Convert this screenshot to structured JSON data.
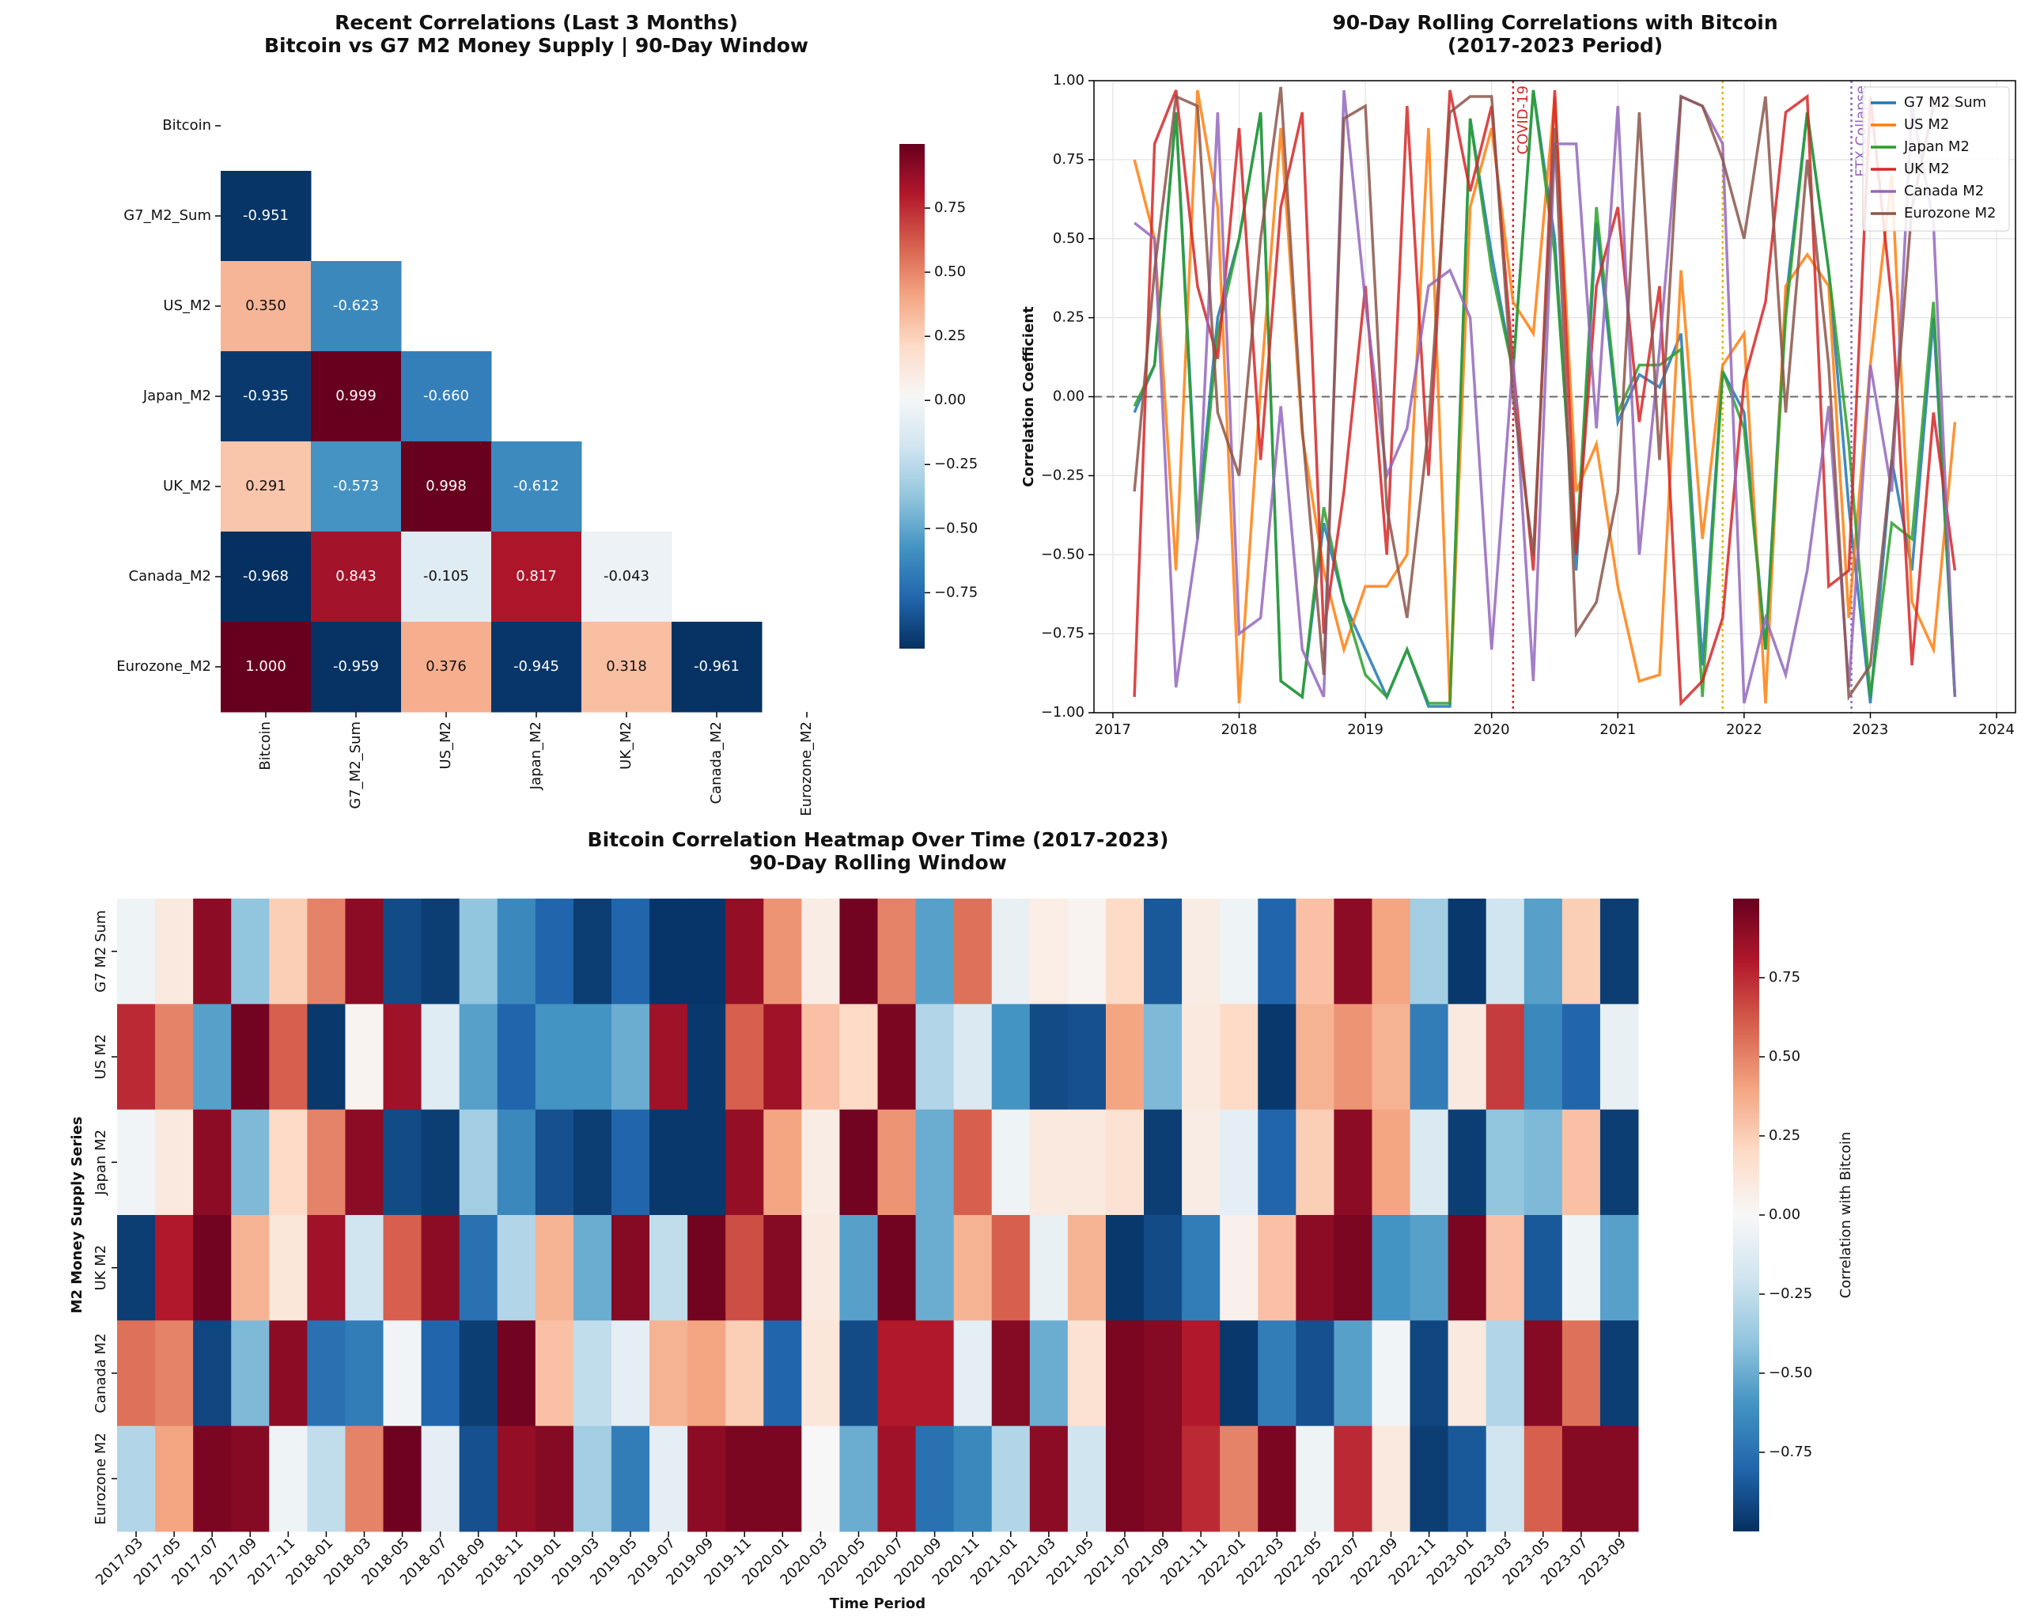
{
  "chart_data": [
    {
      "type": "heatmap",
      "title": "Recent Correlations (Last 3 Months)",
      "subtitle": "Bitcoin vs G7 M2 Money Supply | 90-Day Window",
      "rows": [
        "Bitcoin",
        "G7_M2_Sum",
        "US_M2",
        "Japan_M2",
        "UK_M2",
        "Canada_M2",
        "Eurozone_M2"
      ],
      "columns": [
        "Bitcoin",
        "G7_M2_Sum",
        "US_M2",
        "Japan_M2",
        "UK_M2",
        "Canada_M2",
        "Eurozone_M2"
      ],
      "values": [
        [
          null,
          null,
          null,
          null,
          null,
          null,
          null
        ],
        [
          -0.951,
          null,
          null,
          null,
          null,
          null,
          null
        ],
        [
          0.35,
          -0.623,
          null,
          null,
          null,
          null,
          null
        ],
        [
          -0.935,
          0.999,
          -0.66,
          null,
          null,
          null,
          null
        ],
        [
          0.291,
          -0.573,
          0.998,
          -0.612,
          null,
          null,
          null
        ],
        [
          -0.968,
          0.843,
          -0.105,
          0.817,
          -0.043,
          null,
          null
        ],
        [
          1.0,
          -0.959,
          0.376,
          -0.945,
          0.318,
          -0.961,
          null
        ]
      ],
      "value_labels": [
        [
          null,
          null,
          null,
          null,
          null,
          null,
          null
        ],
        [
          "-0.951",
          null,
          null,
          null,
          null,
          null,
          null
        ],
        [
          "0.350",
          "-0.623",
          null,
          null,
          null,
          null,
          null
        ],
        [
          "-0.935",
          "0.999",
          "-0.660",
          null,
          null,
          null,
          null
        ],
        [
          "0.291",
          "-0.573",
          "0.998",
          "-0.612",
          null,
          null,
          null
        ],
        [
          "-0.968",
          "0.843",
          "-0.105",
          "0.817",
          "-0.043",
          null,
          null
        ],
        [
          "1.000",
          "-0.959",
          "0.376",
          "-0.945",
          "0.318",
          "-0.961",
          null
        ]
      ],
      "clim": [
        -0.968,
        1.0
      ],
      "cticks": [
        {
          "value": -0.75,
          "label": "−0.75"
        },
        {
          "value": -0.5,
          "label": "−0.50"
        },
        {
          "value": -0.25,
          "label": "−0.25"
        },
        {
          "value": 0,
          "label": "0.00"
        },
        {
          "value": 0.25,
          "label": "0.25"
        },
        {
          "value": 0.5,
          "label": "0.50"
        },
        {
          "value": 0.75,
          "label": "0.75"
        }
      ],
      "colormap": [
        "#053061",
        "#2166ac",
        "#4393c3",
        "#92c5de",
        "#d1e5f0",
        "#f7f7f7",
        "#fddbc7",
        "#f4a582",
        "#d6604d",
        "#b2182b",
        "#67001f"
      ]
    },
    {
      "type": "line",
      "title": "90-Day Rolling Correlations with Bitcoin",
      "subtitle": "(2017-2023 Period)",
      "ylabel": "Correlation Coefficient",
      "x": [
        2017.17,
        2017.33,
        2017.5,
        2017.67,
        2017.83,
        2018.0,
        2018.17,
        2018.33,
        2018.5,
        2018.67,
        2018.83,
        2019.0,
        2019.17,
        2019.33,
        2019.5,
        2019.67,
        2019.83,
        2020.0,
        2020.17,
        2020.33,
        2020.5,
        2020.67,
        2020.83,
        2021.0,
        2021.17,
        2021.33,
        2021.5,
        2021.67,
        2021.83,
        2022.0,
        2022.17,
        2022.33,
        2022.5,
        2022.67,
        2022.83,
        2023.0,
        2023.17,
        2023.33,
        2023.5,
        2023.67
      ],
      "series": [
        {
          "name": "G7 M2 Sum",
          "color": "#1f77b4",
          "values": [
            -0.05,
            0.1,
            0.9,
            -0.4,
            0.25,
            0.5,
            0.9,
            -0.9,
            -0.95,
            -0.4,
            -0.65,
            -0.8,
            -0.95,
            -0.8,
            -0.98,
            -0.98,
            0.88,
            0.45,
            0.08,
            0.97,
            0.5,
            -0.55,
            0.55,
            -0.08,
            0.07,
            0.03,
            0.2,
            -0.85,
            0.08,
            -0.05,
            -0.8,
            0.3,
            0.9,
            0.4,
            -0.35,
            -0.97,
            -0.2,
            -0.55,
            0.25,
            -0.95
          ]
        },
        {
          "name": "US M2",
          "color": "#ff7f0e",
          "values": [
            0.75,
            0.5,
            -0.55,
            0.97,
            0.6,
            -0.97,
            0.03,
            0.85,
            -0.12,
            -0.55,
            -0.8,
            -0.6,
            -0.6,
            -0.5,
            0.85,
            -0.97,
            0.6,
            0.85,
            0.3,
            0.2,
            0.95,
            -0.3,
            -0.15,
            -0.6,
            -0.9,
            -0.88,
            0.4,
            -0.45,
            0.1,
            0.2,
            -0.97,
            0.35,
            0.45,
            0.35,
            -0.7,
            0.1,
            0.7,
            -0.65,
            -0.8,
            -0.08
          ]
        },
        {
          "name": "Japan M2",
          "color": "#2ca02c",
          "values": [
            -0.03,
            0.1,
            0.9,
            -0.45,
            0.2,
            0.5,
            0.9,
            -0.9,
            -0.95,
            -0.35,
            -0.65,
            -0.88,
            -0.95,
            -0.8,
            -0.97,
            -0.97,
            0.88,
            0.4,
            0.08,
            0.97,
            0.45,
            -0.5,
            0.6,
            -0.05,
            0.1,
            0.1,
            0.15,
            -0.95,
            0.08,
            -0.1,
            -0.8,
            0.25,
            0.9,
            0.4,
            -0.15,
            -0.95,
            -0.4,
            -0.45,
            0.3,
            -0.95
          ]
        },
        {
          "name": "UK M2",
          "color": "#d62728",
          "values": [
            -0.95,
            0.8,
            0.97,
            0.35,
            0.12,
            0.85,
            -0.2,
            0.6,
            0.9,
            -0.75,
            -0.3,
            0.35,
            -0.5,
            0.92,
            -0.25,
            0.97,
            0.65,
            0.92,
            0.1,
            -0.55,
            0.97,
            -0.5,
            0.35,
            0.6,
            -0.08,
            0.35,
            -0.97,
            -0.9,
            -0.7,
            0.05,
            0.3,
            0.9,
            0.95,
            -0.6,
            -0.55,
            0.95,
            0.3,
            -0.85,
            -0.05,
            -0.55
          ]
        },
        {
          "name": "Canada M2",
          "color": "#9467bd",
          "values": [
            0.55,
            0.5,
            -0.92,
            -0.45,
            0.9,
            -0.75,
            -0.7,
            -0.03,
            -0.8,
            -0.95,
            0.97,
            0.3,
            -0.25,
            -0.1,
            0.35,
            0.4,
            0.25,
            -0.8,
            0.12,
            -0.9,
            0.8,
            0.8,
            -0.1,
            0.92,
            -0.5,
            0.15,
            0.95,
            0.92,
            0.8,
            -0.97,
            -0.7,
            -0.88,
            -0.55,
            -0.03,
            -0.92,
            0.1,
            -0.3,
            0.92,
            0.55,
            -0.95
          ]
        },
        {
          "name": "Eurozone M2",
          "color": "#8c564b",
          "values": [
            -0.3,
            0.4,
            0.95,
            0.92,
            -0.05,
            -0.25,
            0.5,
            0.98,
            -0.1,
            -0.88,
            0.88,
            0.92,
            -0.35,
            -0.7,
            -0.1,
            0.9,
            0.95,
            0.95,
            0.0,
            -0.5,
            0.85,
            -0.75,
            -0.65,
            -0.3,
            0.9,
            -0.2,
            0.95,
            0.92,
            0.75,
            0.5,
            0.95,
            -0.05,
            0.75,
            0.1,
            -0.95,
            -0.85,
            -0.2,
            0.6,
            0.92,
            0.92
          ]
        }
      ],
      "xlim": [
        2016.85,
        2024.15
      ],
      "xticks": [
        2017,
        2018,
        2019,
        2020,
        2021,
        2022,
        2023,
        2024
      ],
      "ylim": [
        -1,
        1
      ],
      "yticks": [
        {
          "value": -1,
          "label": "−1.00"
        },
        {
          "value": -0.75,
          "label": "−0.75"
        },
        {
          "value": -0.5,
          "label": "−0.50"
        },
        {
          "value": -0.25,
          "label": "−0.25"
        },
        {
          "value": 0,
          "label": "0.00"
        },
        {
          "value": 0.25,
          "label": "0.25"
        },
        {
          "value": 0.5,
          "label": "0.50"
        },
        {
          "value": 0.75,
          "label": "0.75"
        },
        {
          "value": 1,
          "label": "1.00"
        }
      ],
      "hline": 0,
      "grid": true,
      "legend": "upper right",
      "events": [
        {
          "x": 2020.17,
          "label": "COVID-19",
          "color": "#d62728"
        },
        {
          "x": 2021.83,
          "color": "#e6b800"
        },
        {
          "x": 2022.85,
          "label": "FTX Collapse",
          "color": "#9467bd"
        }
      ]
    },
    {
      "type": "heatmap",
      "title": "Bitcoin Correlation Heatmap Over Time (2017-2023)",
      "subtitle": "90-Day Rolling Window",
      "xlabel": "Time Period",
      "ylabel": "M2 Money Supply Series",
      "colorbar_label": "Correlation with Bitcoin",
      "rows": [
        "G7 M2 Sum",
        "US M2",
        "Japan M2",
        "UK M2",
        "Canada M2",
        "Eurozone M2"
      ],
      "categories": [
        "2017-03",
        "2017-05",
        "2017-07",
        "2017-09",
        "2017-11",
        "2018-01",
        "2018-03",
        "2018-05",
        "2018-07",
        "2018-09",
        "2018-11",
        "2019-01",
        "2019-03",
        "2019-05",
        "2019-07",
        "2019-09",
        "2019-11",
        "2020-01",
        "2020-03",
        "2020-05",
        "2020-07",
        "2020-09",
        "2020-11",
        "2021-01",
        "2021-03",
        "2021-05",
        "2021-07",
        "2021-09",
        "2021-11",
        "2022-01",
        "2022-03",
        "2022-05",
        "2022-07",
        "2022-09",
        "2022-11",
        "2023-01",
        "2023-03",
        "2023-05",
        "2023-07",
        "2023-09"
      ],
      "values": [
        [
          -0.05,
          0.1,
          0.9,
          -0.4,
          0.25,
          0.5,
          0.9,
          -0.9,
          -0.95,
          -0.4,
          -0.65,
          -0.8,
          -0.95,
          -0.8,
          -0.98,
          -0.98,
          0.88,
          0.45,
          0.08,
          0.97,
          0.5,
          -0.55,
          0.55,
          -0.08,
          0.07,
          0.03,
          0.2,
          -0.85,
          0.08,
          -0.05,
          -0.8,
          0.3,
          0.9,
          0.4,
          -0.35,
          -0.97,
          -0.2,
          -0.55,
          0.25,
          -0.95
        ],
        [
          0.75,
          0.5,
          -0.55,
          0.97,
          0.6,
          -0.97,
          0.03,
          0.85,
          -0.12,
          -0.55,
          -0.8,
          -0.6,
          -0.6,
          -0.5,
          0.85,
          -0.97,
          0.6,
          0.85,
          0.3,
          0.2,
          0.95,
          -0.3,
          -0.15,
          -0.6,
          -0.9,
          -0.88,
          0.4,
          -0.45,
          0.1,
          0.2,
          -0.97,
          0.35,
          0.45,
          0.35,
          -0.7,
          0.1,
          0.7,
          -0.65,
          -0.8,
          -0.08
        ],
        [
          -0.03,
          0.1,
          0.9,
          -0.45,
          0.2,
          0.5,
          0.9,
          -0.9,
          -0.95,
          -0.35,
          -0.65,
          -0.88,
          -0.95,
          -0.8,
          -0.97,
          -0.97,
          0.88,
          0.4,
          0.08,
          0.97,
          0.45,
          -0.5,
          0.6,
          -0.05,
          0.1,
          0.1,
          0.15,
          -0.95,
          0.08,
          -0.1,
          -0.8,
          0.25,
          0.9,
          0.4,
          -0.15,
          -0.95,
          -0.4,
          -0.45,
          0.3,
          -0.95
        ],
        [
          -0.95,
          0.8,
          0.97,
          0.35,
          0.12,
          0.85,
          -0.2,
          0.6,
          0.9,
          -0.75,
          -0.3,
          0.35,
          -0.5,
          0.92,
          -0.25,
          0.97,
          0.65,
          0.92,
          0.1,
          -0.55,
          0.97,
          -0.5,
          0.35,
          0.6,
          -0.08,
          0.35,
          -0.97,
          -0.9,
          -0.7,
          0.05,
          0.3,
          0.9,
          0.95,
          -0.6,
          -0.55,
          0.95,
          0.3,
          -0.85,
          -0.05,
          -0.55
        ],
        [
          0.55,
          0.5,
          -0.92,
          -0.45,
          0.9,
          -0.75,
          -0.7,
          -0.03,
          -0.8,
          -0.95,
          0.97,
          0.3,
          -0.25,
          -0.1,
          0.35,
          0.4,
          0.25,
          -0.8,
          0.12,
          -0.9,
          0.8,
          0.8,
          -0.1,
          0.92,
          -0.5,
          0.15,
          0.95,
          0.92,
          0.8,
          -0.97,
          -0.7,
          -0.88,
          -0.55,
          -0.03,
          -0.92,
          0.1,
          -0.3,
          0.92,
          0.55,
          -0.95
        ],
        [
          -0.3,
          0.4,
          0.95,
          0.92,
          -0.05,
          -0.25,
          0.5,
          0.98,
          -0.1,
          -0.88,
          0.88,
          0.92,
          -0.35,
          -0.7,
          -0.1,
          0.9,
          0.95,
          0.95,
          0.0,
          -0.5,
          0.85,
          -0.75,
          -0.65,
          -0.3,
          0.9,
          -0.2,
          0.95,
          0.92,
          0.75,
          0.5,
          0.95,
          -0.05,
          0.75,
          0.1,
          -0.95,
          -0.85,
          -0.2,
          0.6,
          0.92,
          0.92
        ]
      ],
      "clim": [
        -1,
        1
      ],
      "cticks": [
        {
          "value": -0.75,
          "label": "−0.75"
        },
        {
          "value": -0.5,
          "label": "−0.50"
        },
        {
          "value": -0.25,
          "label": "−0.25"
        },
        {
          "value": 0,
          "label": "0.00"
        },
        {
          "value": 0.25,
          "label": "0.25"
        },
        {
          "value": 0.5,
          "label": "0.50"
        },
        {
          "value": 0.75,
          "label": "0.75"
        }
      ],
      "colormap": [
        "#053061",
        "#2166ac",
        "#4393c3",
        "#92c5de",
        "#d1e5f0",
        "#f7f7f7",
        "#fddbc7",
        "#f4a582",
        "#d6604d",
        "#b2182b",
        "#67001f"
      ]
    }
  ]
}
